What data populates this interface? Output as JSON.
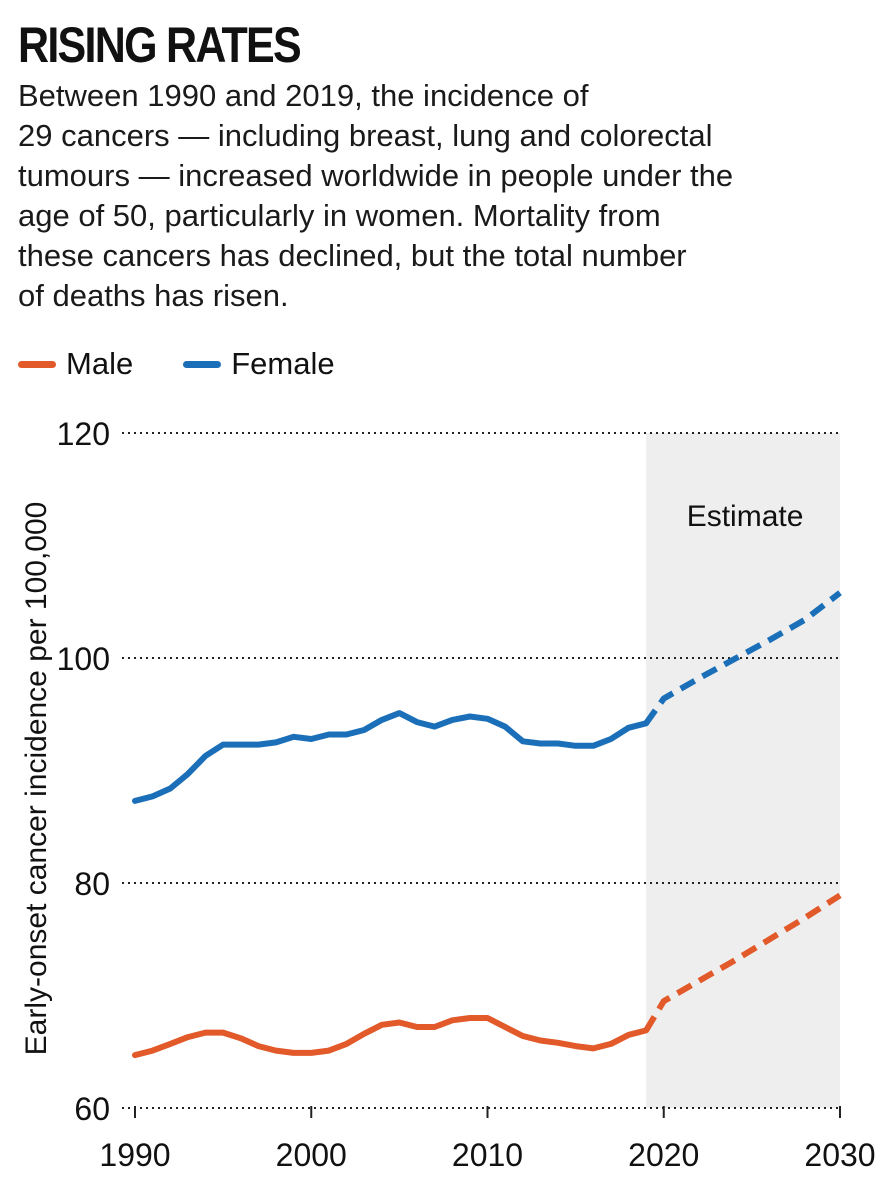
{
  "header": {
    "title": "RISING RATES",
    "subtitle_lines": [
      "Between 1990 and 2019, the incidence of",
      "29 cancers — including breast, lung and colorectal",
      "tumours — increased worldwide in people under the",
      "age of 50, particularly in women. Mortality from",
      "these cancers has declined, but the total number",
      "of deaths has risen."
    ]
  },
  "legend": {
    "male": "Male",
    "female": "Female"
  },
  "colors": {
    "male": "#e2592a",
    "female": "#1a6fb8",
    "estimate_shade": "#eeeeee"
  },
  "chart_data": {
    "type": "line",
    "title": "RISING RATES",
    "xlabel": "",
    "ylabel": "Early-onset cancer incidence per 100,000",
    "xlim": [
      1990,
      2030
    ],
    "ylim": [
      60,
      120
    ],
    "xticks": [
      1990,
      2000,
      2010,
      2020,
      2030
    ],
    "yticks": [
      60,
      80,
      100,
      120
    ],
    "grid": "horizontal dotted",
    "legend_position": "top-left",
    "estimate_region": {
      "label": "Estimate",
      "start": 2019,
      "end": 2030
    },
    "series": [
      {
        "name": "Female",
        "color": "#1a6fb8",
        "x": [
          1990,
          1991,
          1992,
          1993,
          1994,
          1995,
          1996,
          1997,
          1998,
          1999,
          2000,
          2001,
          2002,
          2003,
          2004,
          2005,
          2006,
          2007,
          2008,
          2009,
          2010,
          2011,
          2012,
          2013,
          2014,
          2015,
          2016,
          2017,
          2018,
          2019
        ],
        "values": [
          87.3,
          87.7,
          88.4,
          89.7,
          91.3,
          92.3,
          92.3,
          92.3,
          92.5,
          93.0,
          92.8,
          93.2,
          93.2,
          93.6,
          94.5,
          95.1,
          94.3,
          93.9,
          94.5,
          94.8,
          94.6,
          93.9,
          92.6,
          92.4,
          92.4,
          92.2,
          92.2,
          92.8,
          93.8,
          94.2
        ],
        "estimate_x": [
          2019,
          2020,
          2022,
          2024,
          2026,
          2028,
          2030
        ],
        "estimate_values": [
          94.2,
          96.4,
          98.2,
          99.9,
          101.6,
          103.4,
          105.8
        ]
      },
      {
        "name": "Male",
        "color": "#e2592a",
        "x": [
          1990,
          1991,
          1992,
          1993,
          1994,
          1995,
          1996,
          1997,
          1998,
          1999,
          2000,
          2001,
          2002,
          2003,
          2004,
          2005,
          2006,
          2007,
          2008,
          2009,
          2010,
          2011,
          2012,
          2013,
          2014,
          2015,
          2016,
          2017,
          2018,
          2019
        ],
        "values": [
          64.7,
          65.1,
          65.7,
          66.3,
          66.7,
          66.7,
          66.2,
          65.5,
          65.1,
          64.9,
          64.9,
          65.1,
          65.7,
          66.6,
          67.4,
          67.6,
          67.2,
          67.2,
          67.8,
          68.0,
          68.0,
          67.2,
          66.4,
          66.0,
          65.8,
          65.5,
          65.3,
          65.7,
          66.5,
          66.9
        ],
        "estimate_x": [
          2019,
          2020,
          2022,
          2024,
          2026,
          2028,
          2030
        ],
        "estimate_values": [
          66.9,
          69.5,
          71.3,
          73.1,
          75.0,
          76.9,
          78.9
        ]
      }
    ],
    "annotations": [
      "Estimate"
    ]
  }
}
